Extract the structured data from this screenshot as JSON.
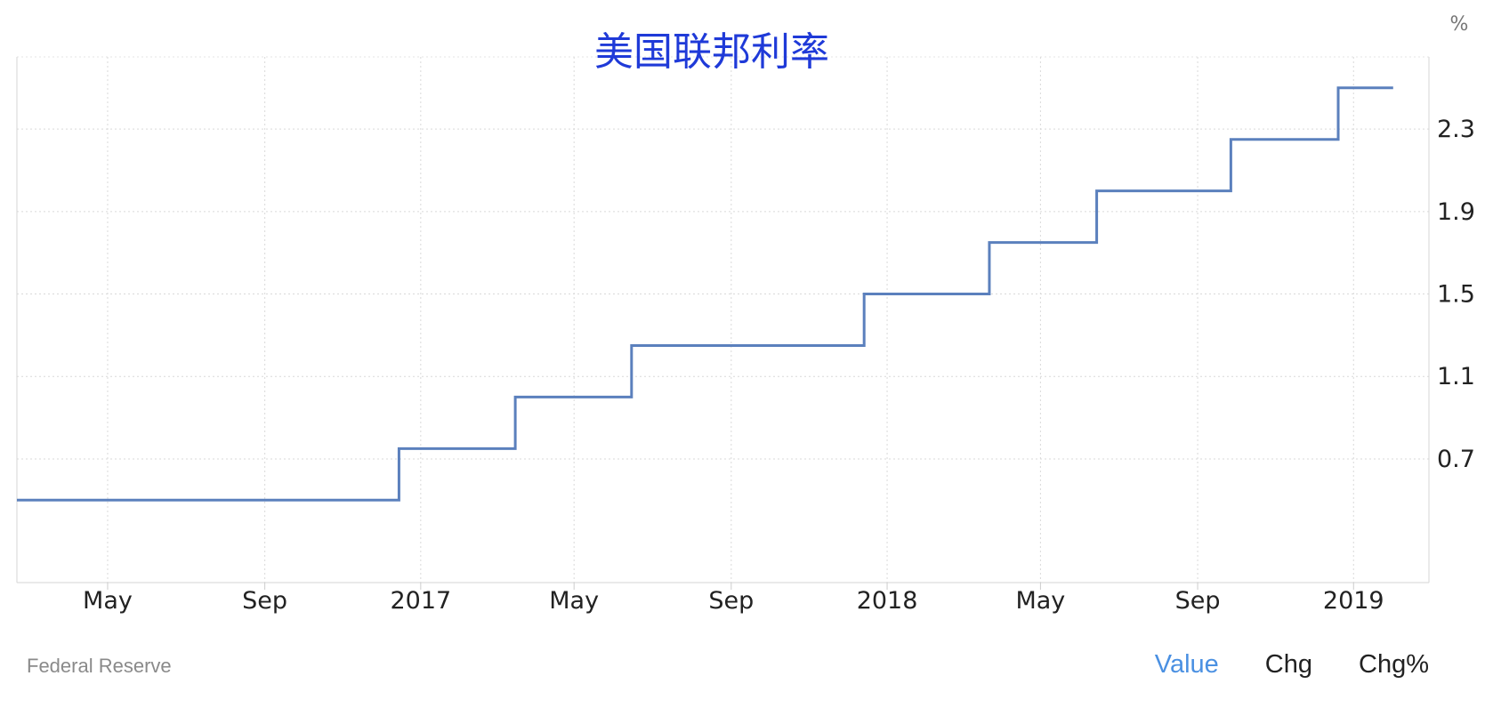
{
  "chart_data": {
    "type": "line",
    "step": true,
    "title": "美国联邦利率",
    "unit": "%",
    "x_range": [
      "2016-02-20",
      "2019-03-01"
    ],
    "ylim": [
      0.1,
      2.65
    ],
    "y_ticks": [
      0.7,
      1.1,
      1.5,
      1.9,
      2.3
    ],
    "x_ticks": [
      {
        "date": "2016-05-01",
        "label": "May"
      },
      {
        "date": "2016-09-01",
        "label": "Sep"
      },
      {
        "date": "2017-01-01",
        "label": "2017"
      },
      {
        "date": "2017-05-01",
        "label": "May"
      },
      {
        "date": "2017-09-01",
        "label": "Sep"
      },
      {
        "date": "2018-01-01",
        "label": "2018"
      },
      {
        "date": "2018-05-01",
        "label": "May"
      },
      {
        "date": "2018-09-01",
        "label": "Sep"
      },
      {
        "date": "2019-01-01",
        "label": "2019"
      }
    ],
    "grid": true,
    "series": [
      {
        "color": "#5b80bd",
        "points": [
          {
            "x": "2016-02-20",
            "y": 0.5
          },
          {
            "x": "2016-12-15",
            "y": 0.75
          },
          {
            "x": "2017-03-16",
            "y": 1.0
          },
          {
            "x": "2017-06-15",
            "y": 1.25
          },
          {
            "x": "2017-12-14",
            "y": 1.5
          },
          {
            "x": "2018-03-22",
            "y": 1.75
          },
          {
            "x": "2018-06-14",
            "y": 2.0
          },
          {
            "x": "2018-09-27",
            "y": 2.25
          },
          {
            "x": "2018-12-20",
            "y": 2.5
          },
          {
            "x": "2019-02-01",
            "y": 2.5
          }
        ]
      }
    ]
  },
  "footer": {
    "source": "Federal Reserve",
    "tabs": [
      "Value",
      "Chg",
      "Chg%"
    ],
    "active_tab": "Value"
  },
  "colors": {
    "title": "#1f3ad8",
    "line": "#5b80bd",
    "active_tab": "#4a90e2",
    "grid": "#d9d9d9"
  }
}
